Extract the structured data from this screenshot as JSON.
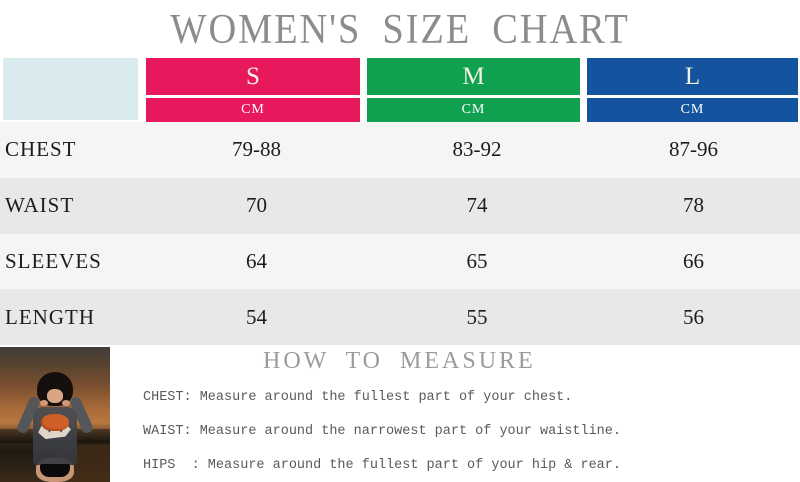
{
  "page_title": "WOMEN'S SIZE CHART",
  "chart_data": {
    "type": "table",
    "title": "WOMEN'S SIZE CHART",
    "unit": "CM",
    "sizes": [
      "S",
      "M",
      "L"
    ],
    "rows": [
      {
        "label": "CHEST",
        "values": [
          "79-88",
          "83-92",
          "87-96"
        ]
      },
      {
        "label": "WAIST",
        "values": [
          "70",
          "74",
          "78"
        ]
      },
      {
        "label": "SLEEVES",
        "values": [
          "64",
          "65",
          "66"
        ]
      },
      {
        "label": "LENGTH",
        "values": [
          "54",
          "55",
          "56"
        ]
      }
    ]
  },
  "measure_guide": {
    "heading": "HOW TO MEASURE",
    "lines": [
      "CHEST: Measure around the fullest part of your chest.",
      "WAIST: Measure around the narrowest part of your waistline.",
      "HIPS  : Measure around the fullest part of your hip & rear."
    ]
  },
  "colors": {
    "size_s_pink": "#E8185C",
    "size_m_green": "#0FA050",
    "size_l_blue": "#14549E",
    "corner_blue": "#DAEBF0",
    "row_light": "#F5F5F5",
    "row_shaded": "#E8E8E8",
    "title_gray": "#8C8C8C"
  }
}
